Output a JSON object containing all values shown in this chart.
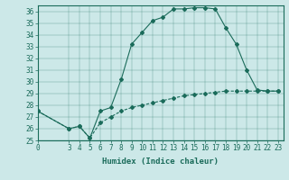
{
  "xlabel": "Humidex (Indice chaleur)",
  "bg_color": "#cce8e8",
  "line_color": "#1a6b5a",
  "xlim": [
    0,
    23.5
  ],
  "ylim": [
    25,
    36.5
  ],
  "xticks": [
    0,
    3,
    4,
    5,
    6,
    7,
    8,
    9,
    10,
    11,
    12,
    13,
    14,
    15,
    16,
    17,
    18,
    19,
    20,
    21,
    22,
    23
  ],
  "yticks": [
    25,
    26,
    27,
    28,
    29,
    30,
    31,
    32,
    33,
    34,
    35,
    36
  ],
  "line1_x": [
    0,
    3,
    4,
    5,
    6,
    7,
    8,
    9,
    10,
    11,
    12,
    13,
    14,
    15,
    16,
    17,
    18,
    19,
    20,
    21,
    22,
    23
  ],
  "line1_y": [
    27.5,
    26.0,
    26.2,
    25.2,
    27.5,
    27.8,
    30.2,
    33.2,
    34.2,
    35.2,
    35.5,
    36.2,
    36.2,
    36.3,
    36.3,
    36.2,
    34.6,
    33.2,
    31.0,
    29.3,
    29.2,
    29.2
  ],
  "line2_x": [
    0,
    3,
    4,
    5,
    6,
    7,
    8,
    9,
    10,
    11,
    12,
    13,
    14,
    15,
    16,
    17,
    18,
    19,
    20,
    21,
    22,
    23
  ],
  "line2_y": [
    27.5,
    26.0,
    26.2,
    25.2,
    26.5,
    27.0,
    27.5,
    27.8,
    28.0,
    28.2,
    28.4,
    28.6,
    28.8,
    28.9,
    29.0,
    29.1,
    29.2,
    29.2,
    29.2,
    29.2,
    29.2,
    29.2
  ],
  "tick_fontsize": 5.5,
  "xlabel_fontsize": 6.5
}
